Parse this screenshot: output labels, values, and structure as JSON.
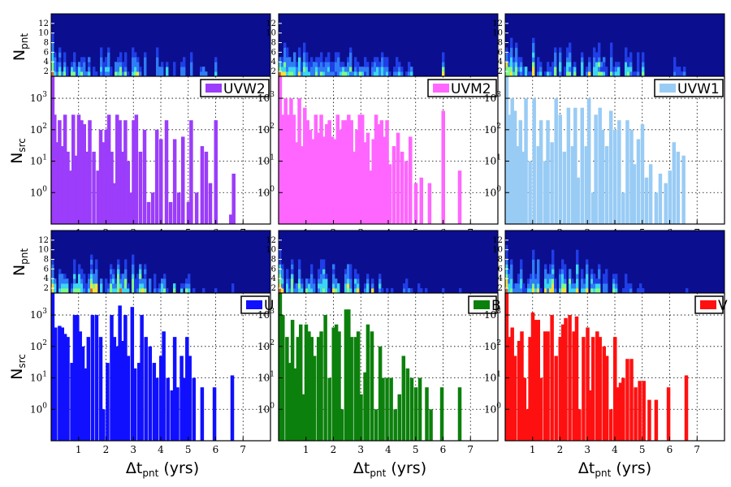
{
  "figure": {
    "ylabel_top": "N",
    "ylabel_top_sub": "pnt",
    "ylabel_bottom": "N",
    "ylabel_bottom_sub": "src",
    "xlabel": "Δt",
    "xlabel_sub": "pnt",
    "xlabel_unit": " (yrs)"
  },
  "chart_data": [
    {
      "type": "bar",
      "filter": "UVW2",
      "color": "#9b3dfa",
      "yscale": "log",
      "xlim": [
        0,
        8
      ],
      "ylim": [
        0.1,
        5000
      ],
      "xticks": [
        "1",
        "2",
        "3",
        "4",
        "5",
        "6",
        "7"
      ],
      "yticks": [
        "10^0",
        "10^1",
        "10^2",
        "10^3"
      ],
      "heatmap_yticks": [
        "2",
        "4",
        "6",
        "8",
        "10",
        "12"
      ],
      "heatmap_ylim": [
        1,
        14
      ],
      "x": [
        0.05,
        0.12,
        0.2,
        0.3,
        0.4,
        0.5,
        0.6,
        0.7,
        0.8,
        0.92,
        1.0,
        1.1,
        1.2,
        1.3,
        1.4,
        1.55,
        1.7,
        1.8,
        1.9,
        2.0,
        2.1,
        2.2,
        2.3,
        2.4,
        2.5,
        2.6,
        2.7,
        2.8,
        2.9,
        3.0,
        3.1,
        3.25,
        3.4,
        3.55,
        3.7,
        3.85,
        4.0,
        4.2,
        4.35,
        4.5,
        4.65,
        4.8,
        5.0,
        5.1,
        5.3,
        5.5,
        5.65,
        5.8,
        6.0,
        6.55,
        6.65
      ],
      "values": [
        5000,
        300,
        40,
        200,
        30,
        300,
        20,
        5,
        300,
        15,
        300,
        200,
        150,
        20,
        200,
        20,
        5,
        100,
        40,
        100,
        300,
        20,
        2,
        300,
        200,
        20,
        200,
        10,
        1,
        200,
        300,
        20,
        100,
        0.5,
        1,
        100,
        50,
        200,
        0.5,
        50,
        1,
        60,
        0.5,
        200,
        1,
        30,
        20,
        2,
        200,
        0.2,
        4
      ]
    },
    {
      "type": "bar",
      "filter": "UVM2",
      "color": "#ff66ff",
      "yscale": "log",
      "xlim": [
        0,
        8
      ],
      "ylim": [
        0.1,
        5000
      ],
      "xticks": [
        "1",
        "2",
        "3",
        "4",
        "5",
        "6",
        "7"
      ],
      "yticks": [
        "10^0",
        "10^1",
        "10^2",
        "10^3"
      ],
      "heatmap_yticks": [
        "2",
        "4",
        "6",
        "8",
        "10",
        "12"
      ],
      "heatmap_ylim": [
        1,
        14
      ],
      "x": [
        0.05,
        0.15,
        0.25,
        0.35,
        0.45,
        0.55,
        0.65,
        0.75,
        0.85,
        0.95,
        1.05,
        1.15,
        1.25,
        1.35,
        1.45,
        1.55,
        1.65,
        1.75,
        1.85,
        1.95,
        2.05,
        2.15,
        2.25,
        2.35,
        2.45,
        2.55,
        2.65,
        2.75,
        2.85,
        2.95,
        3.05,
        3.15,
        3.25,
        3.35,
        3.45,
        3.55,
        3.65,
        3.75,
        3.85,
        3.95,
        4.05,
        4.2,
        4.35,
        4.5,
        4.65,
        4.8,
        5.0,
        5.2,
        5.5,
        6.0,
        6.6
      ],
      "values": [
        5000,
        300,
        1000,
        300,
        1000,
        300,
        40,
        1000,
        30,
        500,
        200,
        100,
        50,
        300,
        80,
        300,
        60,
        150,
        200,
        60,
        50,
        300,
        100,
        200,
        200,
        300,
        200,
        20,
        100,
        300,
        300,
        40,
        80,
        5,
        50,
        300,
        150,
        200,
        60,
        200,
        8,
        30,
        80,
        20,
        10,
        60,
        2,
        3,
        2,
        400,
        5
      ]
    },
    {
      "type": "bar",
      "filter": "UVW1",
      "color": "#99ccf5",
      "yscale": "log",
      "xlim": [
        0,
        8
      ],
      "ylim": [
        0.1,
        5000
      ],
      "xticks": [
        "1",
        "2",
        "3",
        "4",
        "5",
        "6",
        "7"
      ],
      "yticks": [
        "10^0",
        "10^1",
        "10^2",
        "10^3"
      ],
      "heatmap_yticks": [
        "2",
        "4",
        "6",
        "8",
        "10",
        "12"
      ],
      "heatmap_ylim": [
        1,
        14
      ],
      "x": [
        0.05,
        0.15,
        0.25,
        0.35,
        0.45,
        0.55,
        0.65,
        0.75,
        0.9,
        1.05,
        1.2,
        1.3,
        1.45,
        1.55,
        1.7,
        1.85,
        2.0,
        2.15,
        2.3,
        2.45,
        2.55,
        2.65,
        2.8,
        2.95,
        3.05,
        3.2,
        3.3,
        3.45,
        3.55,
        3.7,
        3.85,
        4.0,
        4.15,
        4.3,
        4.45,
        4.6,
        4.7,
        4.85,
        5.0,
        5.15,
        5.3,
        5.5,
        5.65,
        5.85,
        6.0,
        6.15,
        6.3,
        6.5
      ],
      "values": [
        5000,
        300,
        1000,
        400,
        30,
        200,
        20,
        1000,
        10,
        1000,
        30,
        200,
        10,
        200,
        40,
        1000,
        300,
        20,
        500,
        30,
        500,
        3,
        500,
        30,
        1000,
        1,
        300,
        500,
        100,
        30,
        400,
        100,
        200,
        1,
        200,
        100,
        8,
        50,
        150,
        3,
        8,
        1,
        4,
        2,
        5,
        40,
        20,
        15
      ]
    },
    {
      "type": "bar",
      "filter": "U",
      "color": "#1010ff",
      "yscale": "log",
      "xlim": [
        0,
        8
      ],
      "ylim": [
        0.1,
        5000
      ],
      "xticks": [
        "1",
        "2",
        "3",
        "4",
        "5",
        "6",
        "7"
      ],
      "yticks": [
        "10^0",
        "10^1",
        "10^2",
        "10^3"
      ],
      "heatmap_yticks": [
        "2",
        "4",
        "6",
        "8",
        "10",
        "12"
      ],
      "heatmap_ylim": [
        1,
        14
      ],
      "x": [
        0.05,
        0.15,
        0.3,
        0.4,
        0.5,
        0.6,
        0.75,
        0.85,
        0.95,
        1.05,
        1.15,
        1.25,
        1.35,
        1.5,
        1.65,
        1.8,
        1.9,
        2.05,
        2.2,
        2.3,
        2.4,
        2.5,
        2.6,
        2.7,
        2.8,
        2.95,
        3.05,
        3.2,
        3.3,
        3.45,
        3.6,
        3.75,
        3.85,
        4.0,
        4.1,
        4.25,
        4.4,
        4.5,
        4.6,
        4.75,
        4.85,
        4.95,
        5.05,
        5.2,
        5.5,
        5.95,
        6.6
      ],
      "values": [
        5000,
        400,
        450,
        400,
        250,
        200,
        30,
        1000,
        1000,
        300,
        100,
        20,
        200,
        1000,
        1000,
        200,
        1,
        30,
        1000,
        200,
        100,
        2000,
        150,
        1000,
        50,
        1800,
        20,
        30,
        1000,
        200,
        100,
        30,
        10,
        50,
        300,
        10,
        4,
        200,
        5,
        50,
        10,
        200,
        50,
        10,
        5,
        5,
        12
      ]
    },
    {
      "type": "bar",
      "filter": "B",
      "color": "#0c800c",
      "yscale": "log",
      "xlim": [
        0,
        8
      ],
      "ylim": [
        0.1,
        5000
      ],
      "xticks": [
        "1",
        "2",
        "3",
        "4",
        "5",
        "6",
        "7"
      ],
      "yticks": [
        "10^0",
        "10^1",
        "10^2",
        "10^3"
      ],
      "heatmap_yticks": [
        "2",
        "4",
        "6",
        "8",
        "10",
        "12"
      ],
      "heatmap_ylim": [
        1,
        14
      ],
      "x": [
        0.05,
        0.15,
        0.3,
        0.4,
        0.5,
        0.6,
        0.7,
        0.8,
        0.9,
        1.0,
        1.1,
        1.2,
        1.3,
        1.45,
        1.55,
        1.7,
        1.85,
        2.0,
        2.1,
        2.2,
        2.3,
        2.45,
        2.55,
        2.65,
        2.8,
        2.9,
        3.0,
        3.15,
        3.25,
        3.4,
        3.55,
        3.7,
        3.8,
        3.95,
        4.1,
        4.25,
        4.4,
        4.55,
        4.7,
        4.85,
        5.0,
        5.15,
        5.4,
        5.55,
        5.95,
        6.6
      ],
      "values": [
        5000,
        1000,
        200,
        30,
        700,
        20,
        200,
        500,
        3,
        500,
        300,
        200,
        50,
        200,
        300,
        1000,
        10,
        400,
        500,
        300,
        1,
        1500,
        1500,
        200,
        200,
        300,
        3,
        15,
        500,
        300,
        1,
        100,
        10,
        10,
        10,
        1,
        3,
        50,
        20,
        10,
        5,
        10,
        5,
        1,
        5,
        5
      ]
    },
    {
      "type": "bar",
      "filter": "V",
      "color": "#ff1010",
      "yscale": "log",
      "xlim": [
        0,
        8
      ],
      "ylim": [
        0.1,
        5000
      ],
      "xticks": [
        "1",
        "2",
        "3",
        "4",
        "5",
        "6",
        "7"
      ],
      "yticks": [
        "10^0",
        "10^1",
        "10^2",
        "10^3"
      ],
      "heatmap_yticks": [
        "2",
        "4",
        "6",
        "8",
        "10",
        "12"
      ],
      "heatmap_ylim": [
        1,
        14
      ],
      "x": [
        0.05,
        0.15,
        0.25,
        0.35,
        0.5,
        0.6,
        0.7,
        0.8,
        0.9,
        1.0,
        1.1,
        1.2,
        1.3,
        1.45,
        1.55,
        1.7,
        1.85,
        2.0,
        2.1,
        2.2,
        2.35,
        2.5,
        2.6,
        2.7,
        2.85,
        3.0,
        3.1,
        3.2,
        3.35,
        3.45,
        3.6,
        3.7,
        3.85,
        4.0,
        4.1,
        4.2,
        4.3,
        4.45,
        4.6,
        4.75,
        4.9,
        5.05,
        5.25,
        5.5,
        5.95,
        6.6
      ],
      "values": [
        5000,
        200,
        400,
        50,
        150,
        300,
        10,
        1,
        200,
        1200,
        700,
        700,
        10,
        300,
        300,
        1000,
        50,
        200,
        500,
        800,
        1000,
        300,
        900,
        1,
        200,
        400,
        4,
        200,
        300,
        200,
        100,
        50,
        1,
        200,
        5,
        7,
        10,
        40,
        40,
        5,
        8,
        8,
        2,
        2,
        5,
        12
      ]
    }
  ]
}
